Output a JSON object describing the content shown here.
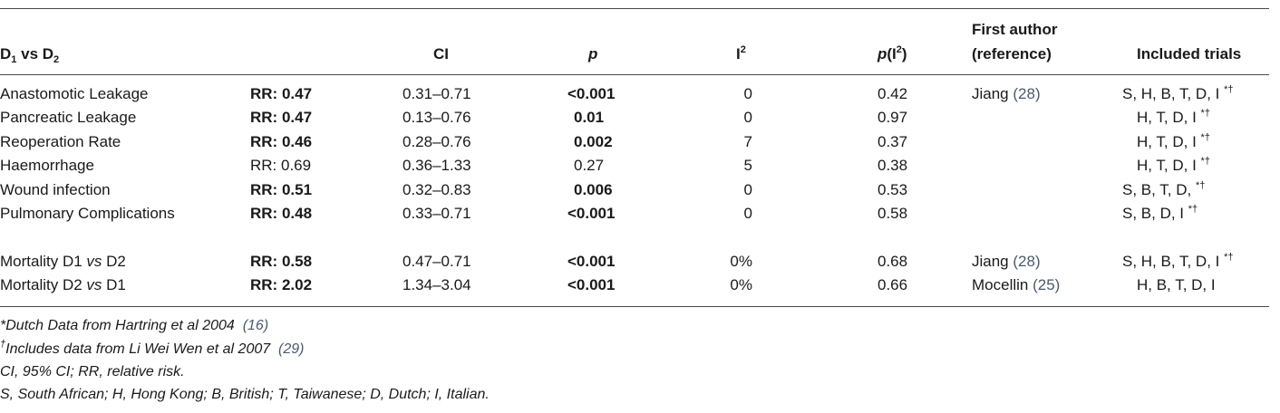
{
  "header": {
    "d_label": "D",
    "d1_sub": "1",
    "vs": " vs D",
    "d2_sub": "2",
    "ci": "CI",
    "p": "p",
    "i_letter": "I",
    "i_sup": "2",
    "pi_p": "p",
    "pi_open": "(I",
    "pi_sup": "2",
    "pi_close": ")",
    "first_author_line1": "First author",
    "first_author_line2": "(reference)",
    "included_trials": "Included trials"
  },
  "rows": [
    {
      "outcome": "Anastomotic Leakage",
      "rr_prefix": "RR: ",
      "rr": "0.47",
      "rr_bold": true,
      "ci": "0.31–0.71",
      "p": "<0.001",
      "p_bold": true,
      "i2": "0",
      "pi2": "0.42",
      "author": "Jiang",
      "ref": "(28)",
      "trials": "S, H, B, T, D, I",
      "marks": "*†"
    },
    {
      "outcome": "Pancreatic Leakage",
      "rr_prefix": "RR: ",
      "rr": "0.47",
      "rr_bold": true,
      "ci": "0.13–0.76",
      "p": "0.01",
      "p_bold": true,
      "i2": "0",
      "pi2": "0.97",
      "author": "",
      "ref": "",
      "trials": "H, T, D, I",
      "marks": "*†"
    },
    {
      "outcome": "Reoperation Rate",
      "rr_prefix": "RR: ",
      "rr": "0.46",
      "rr_bold": true,
      "ci": "0.28–0.76",
      "p": "0.002",
      "p_bold": true,
      "i2": "7",
      "pi2": "0.37",
      "author": "",
      "ref": "",
      "trials": "H, T, D, I",
      "marks": "*†"
    },
    {
      "outcome": "Haemorrhage",
      "rr_prefix": "RR: ",
      "rr": "0.69",
      "rr_bold": false,
      "ci": "0.36–1.33",
      "p": "0.27",
      "p_bold": false,
      "i2": "5",
      "pi2": "0.38",
      "author": "",
      "ref": "",
      "trials": "H, T, D, I",
      "marks": "*†"
    },
    {
      "outcome": "Wound infection",
      "rr_prefix": "RR: ",
      "rr": "0.51",
      "rr_bold": true,
      "ci": "0.32–0.83",
      "p": "0.006",
      "p_bold": true,
      "i2": "0",
      "pi2": "0.53",
      "author": "",
      "ref": "",
      "trials": "S, B, T, D,",
      "marks": "*†"
    },
    {
      "outcome": "Pulmonary Complications",
      "rr_prefix": "RR: ",
      "rr": "0.48",
      "rr_bold": true,
      "ci": "0.33–0.71",
      "p": "<0.001",
      "p_bold": true,
      "i2": "0",
      "pi2": "0.58",
      "author": "",
      "ref": "",
      "trials": "S, B, D, I",
      "marks": "*†"
    },
    {
      "outcome": "Mortality D1 vs D2",
      "outcome_pre": "Mortality D1 ",
      "outcome_vs": "vs",
      "outcome_post": " D2",
      "rr_prefix": "RR: ",
      "rr": "0.58",
      "rr_bold": true,
      "ci": "0.47–0.71",
      "p": "<0.001",
      "p_bold": true,
      "i2": "0%",
      "pi2": "0.68",
      "author": "Jiang",
      "ref": "(28)",
      "trials": "S, H, B, T, D, I",
      "marks": "*†"
    },
    {
      "outcome": "Mortality D2 vs D1",
      "outcome_pre": "Mortality D2 ",
      "outcome_vs": "vs",
      "outcome_post": " D1",
      "rr_prefix": "RR: ",
      "rr": "2.02",
      "rr_bold": true,
      "ci": "1.34–3.04",
      "p": "<0.001",
      "p_bold": true,
      "i2": "0%",
      "pi2": "0.66",
      "author": "Mocellin",
      "ref": "(25)",
      "trials": "H, B, T, D, I",
      "marks": ""
    }
  ],
  "footnotes": {
    "n1_mark": "*",
    "n1_text": "Dutch Data from Hartring et al 2004",
    "n1_ref": "(16)",
    "n2_mark": "†",
    "n2_text": "Includes data from Li Wei Wen et al 2007",
    "n2_ref": "(29)",
    "n3": "CI, 95% CI; RR, relative risk.",
    "n4": "S, South African; H, Hong Kong; B, British; T, Taiwanese; D, Dutch; I, Italian."
  }
}
